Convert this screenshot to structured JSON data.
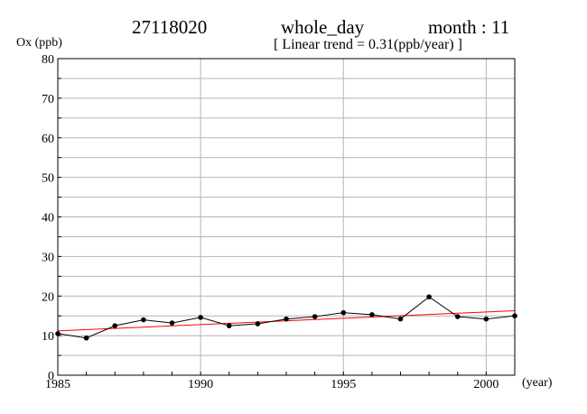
{
  "header": {
    "station": "27118020",
    "period": "whole_day",
    "month_label": "month : 11",
    "trend_label": "[ Linear trend = 0.31(ppb/year) ]"
  },
  "chart_data": {
    "type": "line",
    "ylabel": "Ox (ppb)",
    "xlabel": "(year)",
    "xlim": [
      1985,
      2001
    ],
    "ylim": [
      0,
      80
    ],
    "x_ticks": [
      1985,
      1990,
      1995,
      2000
    ],
    "y_ticks": [
      0,
      10,
      20,
      30,
      40,
      50,
      60,
      70,
      80
    ],
    "grid": true,
    "series": [
      {
        "x": [
          1985,
          1986,
          1987,
          1988,
          1989,
          1990,
          1991,
          1992,
          1993,
          1994,
          1995,
          1996,
          1997,
          1998,
          1999,
          2000,
          2001
        ],
        "values": [
          10.5,
          9.4,
          12.5,
          14.0,
          13.2,
          14.6,
          12.5,
          13.0,
          14.2,
          14.8,
          15.8,
          15.3,
          14.2,
          19.8,
          14.8,
          14.2,
          15.0
        ],
        "color": "#000000"
      }
    ],
    "trend_line": {
      "x": [
        1985,
        2001
      ],
      "values": [
        11.2,
        16.3
      ],
      "color": "#ff0000"
    }
  }
}
